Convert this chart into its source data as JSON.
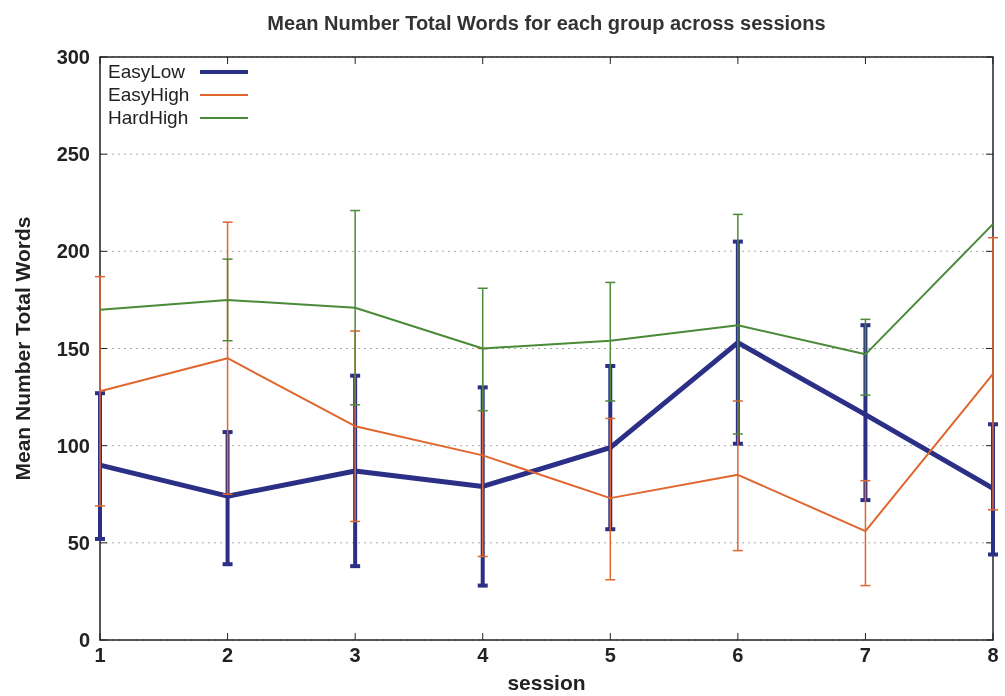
{
  "chart_data": {
    "type": "line",
    "title": "Mean Number Total Words for each group across sessions",
    "xlabel": "session",
    "ylabel": "Mean Number Total Words",
    "x": [
      1,
      2,
      3,
      4,
      5,
      6,
      7,
      8
    ],
    "xlim": [
      1,
      8
    ],
    "xticks": [
      1,
      2,
      3,
      4,
      5,
      6,
      7,
      8
    ],
    "ylim": [
      0,
      300
    ],
    "yticks": [
      0,
      50,
      100,
      150,
      200,
      250,
      300
    ],
    "grid": "y",
    "legend": "top left",
    "marker": "none",
    "line_style": "solid",
    "series": [
      {
        "name": "EasyLow",
        "color": "#2b2f85",
        "values": [
          90,
          74,
          87,
          79,
          99,
          153,
          116,
          78
        ],
        "errors": [
          [
            52,
            127
          ],
          [
            39,
            107
          ],
          [
            38,
            136
          ],
          [
            28,
            130
          ],
          [
            57,
            141
          ],
          [
            101,
            205
          ],
          [
            72,
            162
          ],
          [
            44,
            111
          ]
        ]
      },
      {
        "name": "EasyHigh",
        "color": "#e0662e",
        "values": [
          128,
          145,
          110,
          95,
          73,
          85,
          56,
          137
        ],
        "errors": [
          [
            69,
            187
          ],
          [
            75,
            215
          ],
          [
            61,
            159
          ],
          [
            43,
            150
          ],
          [
            31,
            114
          ],
          [
            46,
            123
          ],
          [
            28,
            82
          ],
          [
            67,
            207
          ]
        ]
      },
      {
        "name": "HardHigh",
        "color": "#4a8a38",
        "values": [
          170,
          175,
          171,
          150,
          154,
          162,
          147,
          214
        ],
        "errors": [
          null,
          [
            154,
            196
          ],
          [
            121,
            221
          ],
          [
            118,
            181
          ],
          [
            123,
            184
          ],
          [
            106,
            219
          ],
          [
            126,
            165
          ],
          null
        ]
      }
    ]
  }
}
